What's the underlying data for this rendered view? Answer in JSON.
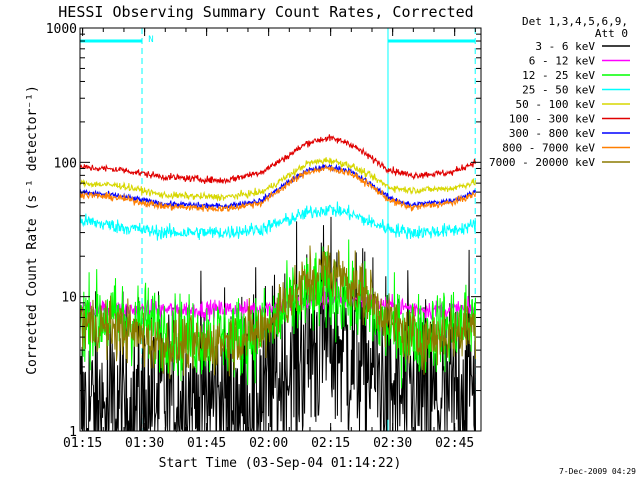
{
  "chart_data": {
    "type": "line",
    "title": "HESSI Observing Summary Count Rates, Corrected",
    "xlabel": "Start Time (03-Sep-04 01:14:22)",
    "ylabel": "Corrected Count Rate (s⁻¹ detector⁻¹)",
    "x_unit": "minutes after 01:14:22 UT",
    "xlim": [
      0,
      97
    ],
    "ylim": [
      1,
      1000
    ],
    "y_scale": "log",
    "x_ticks": [
      {
        "t": 0.63,
        "label": "01:15"
      },
      {
        "t": 15.63,
        "label": "01:30"
      },
      {
        "t": 30.63,
        "label": "01:45"
      },
      {
        "t": 45.63,
        "label": "02:00"
      },
      {
        "t": 60.63,
        "label": "02:15"
      },
      {
        "t": 75.63,
        "label": "02:30"
      },
      {
        "t": 90.63,
        "label": "02:45"
      }
    ],
    "y_ticks": [
      {
        "v": 1,
        "label": "1"
      },
      {
        "v": 10,
        "label": "10"
      },
      {
        "v": 100,
        "label": "100"
      },
      {
        "v": 1000,
        "label": "1000"
      }
    ],
    "legend_header": [
      "Det 1,3,4,5,6,9,",
      "Att 0"
    ],
    "legend_position": "right",
    "series": [
      {
        "name": "3 - 6 keV",
        "color": "#000000",
        "noise": 0.9,
        "t": [
          0,
          15,
          18,
          40,
          46,
          52,
          56,
          60,
          64,
          70,
          76,
          84,
          88,
          92,
          95,
          97
        ],
        "v": [
          1.4,
          1.4,
          1.7,
          1.7,
          2,
          3.5,
          4.5,
          5.2,
          4.3,
          3,
          1.8,
          1.6,
          1.6,
          2,
          2.5,
          2.6
        ]
      },
      {
        "name": "6 - 12 keV",
        "color": "#ff00ff",
        "noise": 0.08,
        "t": [
          0,
          20,
          40,
          50,
          56,
          62,
          68,
          74,
          84,
          97
        ],
        "v": [
          8,
          8,
          8,
          8.6,
          9.3,
          9.6,
          9.4,
          8.6,
          8,
          8
        ]
      },
      {
        "name": "12 - 25 keV",
        "color": "#00ff00",
        "noise": 0.35,
        "t": [
          0,
          15,
          25,
          40,
          46,
          52,
          58,
          62,
          68,
          74,
          80,
          90,
          97
        ],
        "v": [
          7,
          6.5,
          5,
          5,
          6,
          9,
          11,
          11,
          9,
          6,
          5,
          6,
          7
        ]
      },
      {
        "name": "25 - 50 keV",
        "color": "#00ffff",
        "noise": 0.06,
        "t": [
          0,
          10,
          20,
          35,
          44,
          50,
          55,
          60,
          65,
          70,
          75,
          80,
          90,
          97
        ],
        "v": [
          37,
          33,
          30,
          30,
          32,
          37,
          42,
          45,
          42,
          36,
          32,
          30,
          31,
          35
        ]
      },
      {
        "name": "50 - 100 keV",
        "color": "#d7d700",
        "noise": 0.03,
        "t": [
          0,
          10,
          20,
          35,
          44,
          50,
          55,
          60,
          65,
          70,
          75,
          80,
          90,
          97
        ],
        "v": [
          70,
          67,
          57,
          55,
          60,
          78,
          98,
          104,
          96,
          80,
          65,
          62,
          64,
          73
        ]
      },
      {
        "name": "100 - 300 keV",
        "color": "#e00000",
        "noise": 0.03,
        "t": [
          0,
          10,
          20,
          35,
          44,
          50,
          55,
          60,
          65,
          70,
          75,
          80,
          90,
          97
        ],
        "v": [
          92,
          88,
          78,
          73,
          85,
          110,
          140,
          152,
          140,
          110,
          88,
          80,
          84,
          105
        ]
      },
      {
        "name": "300 - 800 keV",
        "color": "#0000ff",
        "noise": 0.025,
        "t": [
          0,
          10,
          20,
          35,
          44,
          50,
          55,
          60,
          65,
          70,
          75,
          80,
          90,
          97
        ],
        "v": [
          60,
          56,
          49,
          47,
          52,
          70,
          87,
          93,
          87,
          70,
          54,
          48,
          52,
          62
        ]
      },
      {
        "name": "800 - 7000 keV",
        "color": "#ff7f00",
        "noise": 0.03,
        "t": [
          0,
          10,
          20,
          35,
          44,
          50,
          55,
          60,
          65,
          70,
          75,
          80,
          90,
          97
        ],
        "v": [
          58,
          54,
          47,
          45,
          50,
          68,
          85,
          90,
          84,
          68,
          52,
          46,
          50,
          60
        ]
      },
      {
        "name": "7000 - 20000 keV",
        "color": "#8b7a00",
        "noise": 0.25,
        "t": [
          0,
          12,
          18,
          30,
          44,
          50,
          56,
          60,
          64,
          70,
          76,
          82,
          92,
          97
        ],
        "v": [
          6.5,
          5.5,
          4.5,
          4.3,
          5.5,
          9.5,
          14,
          16,
          14,
          10,
          6,
          4.8,
          5.5,
          6.5
        ]
      }
    ],
    "interval_markers": {
      "solid_x": [
        0,
        74.5
      ],
      "dashed_x": [
        15,
        95.6
      ],
      "bars": [
        {
          "from": 0,
          "to": 15
        },
        {
          "from": 74.5,
          "to": 95.6
        }
      ],
      "bar_value": 800,
      "bar_color": "#00ffff",
      "flag": {
        "x": 16.5,
        "text": "N"
      }
    },
    "footer_date": "7-Dec-2009 04:29"
  }
}
